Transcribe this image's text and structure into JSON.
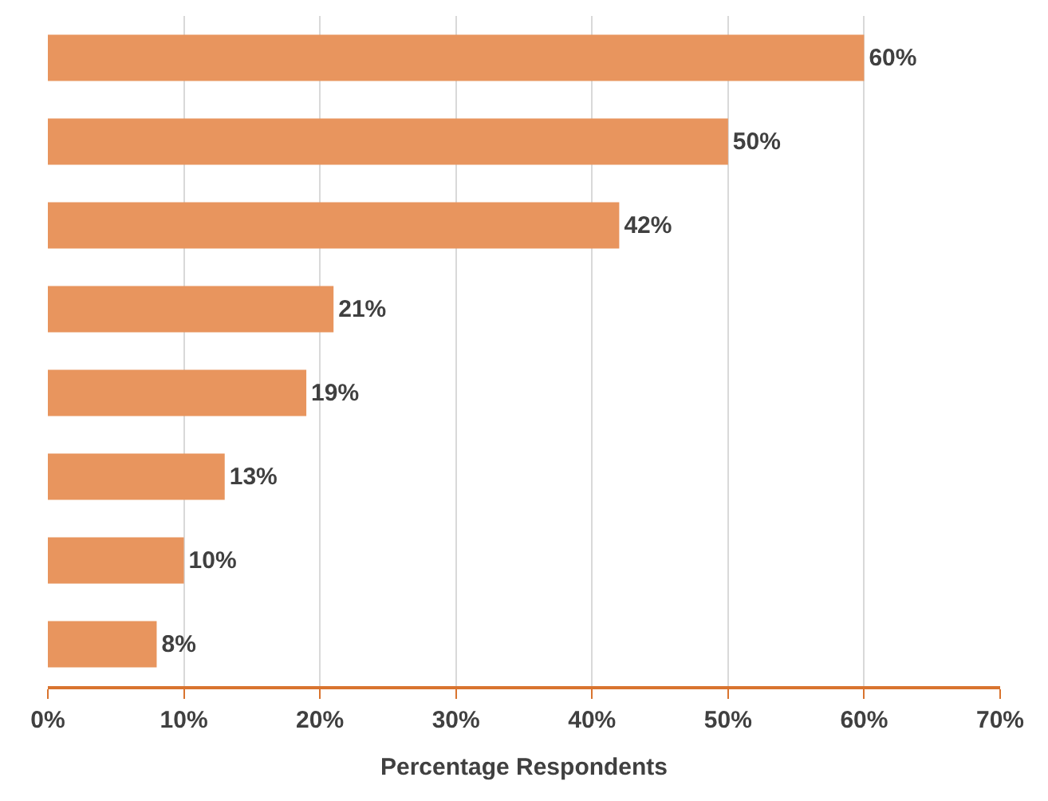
{
  "chart_data": {
    "type": "bar",
    "orientation": "horizontal",
    "xlabel": "Percentage Respondents",
    "categories": [
      null,
      null,
      null,
      null,
      null,
      null,
      null,
      null
    ],
    "values": [
      60,
      50,
      42,
      21,
      19,
      13,
      10,
      8
    ],
    "value_labels": [
      "60%",
      "50%",
      "42%",
      "21%",
      "19%",
      "13%",
      "10%",
      "8%"
    ],
    "color": "#e8955e",
    "xlim": [
      0,
      70
    ],
    "xticks": [
      {
        "value": 0,
        "label": "0%"
      },
      {
        "value": 10,
        "label": "10%"
      },
      {
        "value": 20,
        "label": "20%"
      },
      {
        "value": 30,
        "label": "30%"
      },
      {
        "value": 40,
        "label": "40%"
      },
      {
        "value": 50,
        "label": "50%"
      },
      {
        "value": 60,
        "label": "60%"
      },
      {
        "value": 70,
        "label": "70%"
      }
    ],
    "grid": "x"
  }
}
